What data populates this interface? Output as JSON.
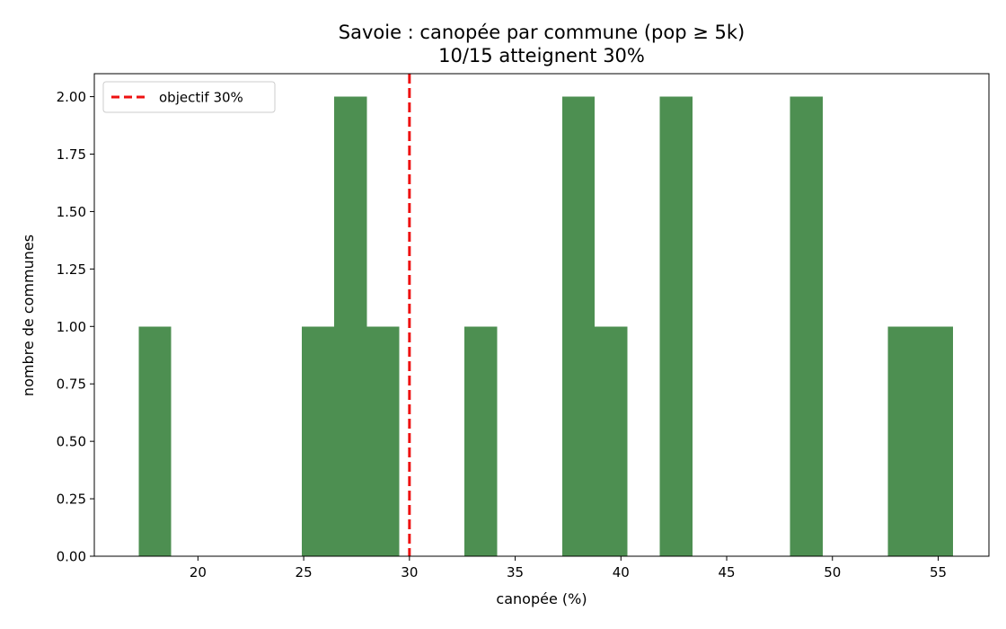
{
  "chart_data": {
    "type": "bar",
    "title": "Savoie : canopée par commune (pop ≥ 5k)",
    "subtitle": "10/15 atteignent 30%",
    "xlabel": "canopée (%)",
    "ylabel": "nombre de communes",
    "xlim": [
      15.1,
      57.4
    ],
    "ylim": [
      0,
      2.1
    ],
    "x_ticks": [
      20,
      25,
      30,
      35,
      40,
      45,
      50,
      55
    ],
    "y_ticks": [
      0,
      0.25,
      0.5,
      0.75,
      1.0,
      1.25,
      1.5,
      1.75,
      2.0
    ],
    "y_tick_labels": [
      "0.00",
      "0.25",
      "0.50",
      "0.75",
      "1.00",
      "1.25",
      "1.50",
      "1.75",
      "2.00"
    ],
    "bin_width": 1.54,
    "bins": [
      {
        "start": 17.2,
        "count": 1
      },
      {
        "start": 24.9,
        "count": 1
      },
      {
        "start": 26.44,
        "count": 2
      },
      {
        "start": 27.98,
        "count": 1
      },
      {
        "start": 32.6,
        "count": 1
      },
      {
        "start": 37.22,
        "count": 2
      },
      {
        "start": 38.76,
        "count": 1
      },
      {
        "start": 41.84,
        "count": 2
      },
      {
        "start": 48.0,
        "count": 2
      },
      {
        "start": 52.62,
        "count": 1
      },
      {
        "start": 54.16,
        "count": 1
      }
    ],
    "bar_color": "#4d8f51",
    "threshold": {
      "x": 30,
      "label": "objectif 30%",
      "color": "#ee1111",
      "style": "dashed"
    },
    "legend": {
      "position": "top-left"
    },
    "grid": false
  }
}
